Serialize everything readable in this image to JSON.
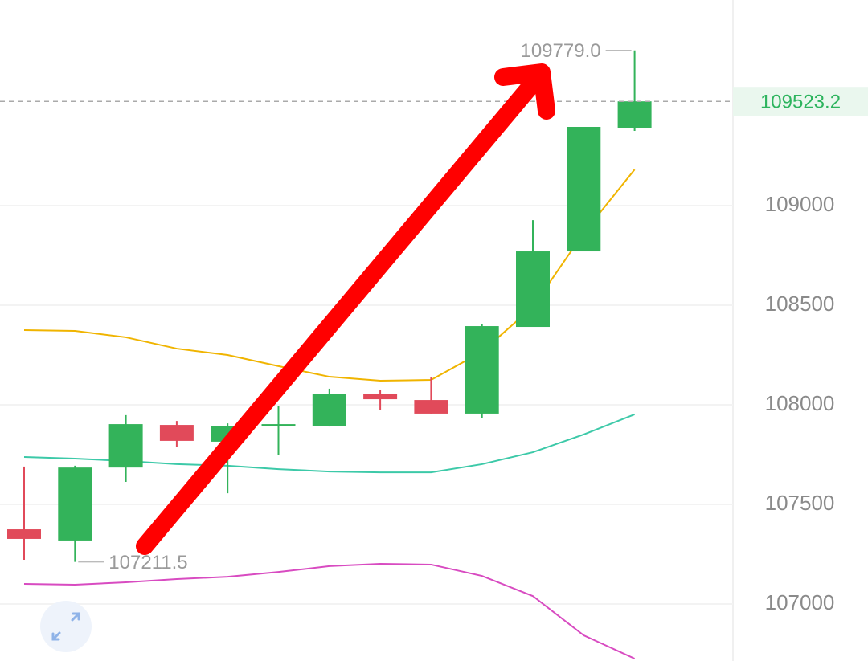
{
  "chart_data": {
    "type": "candlestick",
    "categories": [
      null,
      null,
      null,
      null,
      null,
      null,
      null,
      null,
      null,
      null,
      null,
      null,
      null
    ],
    "open": [
      107375,
      107319,
      107685,
      107899,
      107815,
      107900,
      107895,
      108056,
      108024,
      107956,
      108391,
      108770,
      109391
    ],
    "high": [
      107690,
      107694,
      107948,
      107919,
      107907,
      107996,
      108081,
      108073,
      108141,
      108407,
      108927,
      109395,
      109779
    ],
    "low": [
      107222,
      107211.5,
      107613,
      107790,
      107556,
      107750,
      107891,
      107972,
      107956,
      107935,
      108391,
      108770,
      109375
    ],
    "close": [
      107327,
      107685,
      107903,
      107819,
      107895,
      107903,
      108056,
      108028,
      107956,
      108395,
      108770,
      109395,
      109523.2
    ],
    "up_color": "#33b35a",
    "down_color": "#e14a5a",
    "lines": [
      {
        "color": "#f0b400",
        "values": [
          108375,
          108371,
          108339,
          108282,
          108250,
          108194,
          108141,
          108121,
          108125,
          108266,
          108492,
          108863,
          109181
        ]
      },
      {
        "color": "#3cc9a8",
        "values": [
          107738,
          107730,
          107718,
          107702,
          107694,
          107677,
          107665,
          107661,
          107661,
          107702,
          107762,
          107851,
          107952
        ]
      },
      {
        "color": "#d84bc1",
        "values": [
          107101,
          107097,
          107109,
          107125,
          107137,
          107161,
          107190,
          107202,
          107198,
          107141,
          107040,
          106843,
          106726
        ]
      }
    ],
    "annotations": [
      {
        "value": 109779,
        "label": "109779.0"
      }
    ],
    "ylim": [
      106714,
      110032
    ],
    "yticks": [
      107000,
      107500,
      108000,
      108500,
      109000
    ],
    "grid": true
  }
}
